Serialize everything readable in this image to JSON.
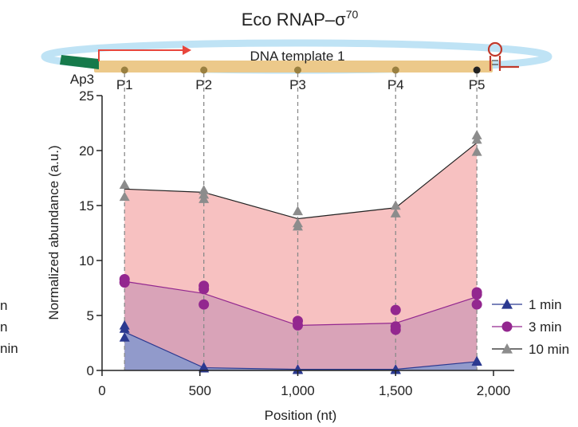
{
  "chart_data": {
    "type": "area",
    "title": "Eco RNAP–σ",
    "title_superscript": "70",
    "xlabel": "Position (nt)",
    "ylabel": "Normalized abundance (a.u.)",
    "xlim": [
      0,
      2100
    ],
    "ylim": [
      0,
      25
    ],
    "x_ticks": [
      0,
      500,
      1000,
      1500,
      2000
    ],
    "x_tick_labels": [
      "0",
      "500",
      "1,000",
      "1,500",
      "2,000"
    ],
    "y_ticks": [
      0,
      5,
      10,
      15,
      20,
      25
    ],
    "y_tick_labels": [
      "0",
      "5",
      "10",
      "15",
      "20",
      "25"
    ],
    "x": [
      115,
      520,
      1000,
      1500,
      1915
    ],
    "series": [
      {
        "name": "1 min",
        "marker": "triangle",
        "color": "#2b3990",
        "fill": "#8d9acb",
        "mean": [
          3.5,
          0.25,
          0.1,
          0.1,
          0.8
        ],
        "points": [
          [
            115,
            4.1
          ],
          [
            115,
            3.8
          ],
          [
            115,
            3.0
          ],
          [
            520,
            0.3
          ],
          [
            520,
            0.2
          ],
          [
            1000,
            0.1
          ],
          [
            1000,
            0.05
          ],
          [
            1500,
            0.1
          ],
          [
            1500,
            0.05
          ],
          [
            1915,
            0.8
          ],
          [
            1915,
            0.85
          ]
        ]
      },
      {
        "name": "3 min",
        "marker": "circle",
        "color": "#93278f",
        "fill": "#d9a3b8",
        "mean": [
          8.1,
          7.0,
          4.1,
          4.3,
          6.7
        ],
        "points": [
          [
            115,
            8.3
          ],
          [
            115,
            8.0
          ],
          [
            520,
            7.7
          ],
          [
            520,
            7.4
          ],
          [
            520,
            6.0
          ],
          [
            1000,
            4.5
          ],
          [
            1000,
            4.1
          ],
          [
            1500,
            5.5
          ],
          [
            1500,
            4.0
          ],
          [
            1500,
            3.7
          ],
          [
            1915,
            7.1
          ],
          [
            1915,
            6.9
          ],
          [
            1915,
            6.0
          ]
        ]
      },
      {
        "name": "10 min",
        "marker": "triangle",
        "color": "#8c8c8c",
        "fill": "#f7c1c1",
        "mean": [
          16.5,
          16.2,
          13.8,
          14.8,
          20.7
        ],
        "points": [
          [
            115,
            16.9
          ],
          [
            115,
            15.8
          ],
          [
            520,
            16.4
          ],
          [
            520,
            16.0
          ],
          [
            520,
            15.6
          ],
          [
            1000,
            14.5
          ],
          [
            1000,
            13.4
          ],
          [
            1000,
            13.1
          ],
          [
            1500,
            15.0
          ],
          [
            1500,
            14.3
          ],
          [
            1915,
            21.4
          ],
          [
            1915,
            21.0
          ],
          [
            1915,
            19.9
          ]
        ]
      }
    ],
    "legend_position": "bottom-right",
    "legend_left_fragments": [
      "n",
      "n",
      "nin"
    ],
    "diagram": {
      "template_label": "DNA template 1",
      "promoter_label": "Ap3",
      "sites": [
        "P1",
        "P2",
        "P3",
        "P4",
        "P5"
      ],
      "colors": {
        "ring": "#bfe3f5",
        "dna": "#ecc98a",
        "promoter": "#167a4b",
        "arrow": "#e8463c",
        "terminator": "#c0392b",
        "site_dot": "#9a8040",
        "last_site_dot": "#222222"
      }
    }
  }
}
